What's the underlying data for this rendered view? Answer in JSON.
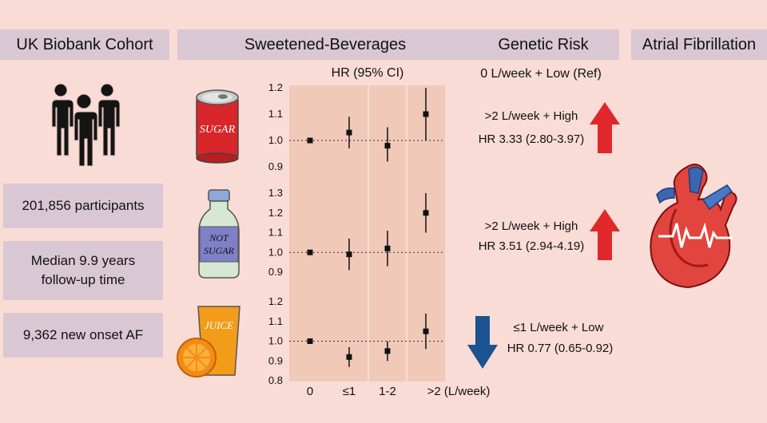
{
  "headers": {
    "cohort": "UK Biobank Cohort",
    "beverages": "Sweetened-Beverages",
    "genetic": "Genetic Risk",
    "af": "Atrial Fibrillation"
  },
  "stats": {
    "participants": "201,856 participants",
    "followup_line1": "Median  9.9 years",
    "followup_line2": "follow-up time",
    "onset": "9,362 new onset AF"
  },
  "beverage_labels": {
    "sugar": "SUGAR",
    "not_line1": "NOT",
    "not_line2": "SUGAR",
    "juice": "JUICE"
  },
  "forest": {
    "hr_label": "HR (95% CI)",
    "x_labels": [
      "0",
      "≤1",
      "1-2",
      ">2 (L/week)"
    ]
  },
  "genetic": {
    "ref": "0 L/week + Low (Ref)",
    "results": [
      {
        "group": ">2 L/week + High",
        "hr": "HR 3.33 (2.80-3.97)",
        "direction": "up",
        "color": "#e0282a"
      },
      {
        "group": ">2 L/week + High",
        "hr": "HR 3.51 (2.94-4.19)",
        "direction": "up",
        "color": "#e0282a"
      },
      {
        "group": "≤1 L/week + Low",
        "hr": "HR 0.77 (0.65-0.92)",
        "direction": "down",
        "color": "#1b5290"
      }
    ]
  },
  "chart_data": [
    {
      "type": "scatter",
      "title": "Sugar-sweetened beverages",
      "xlabel": "L/week",
      "ylabel": "HR (95% CI)",
      "categories": [
        "0",
        "≤1",
        "1-2",
        ">2"
      ],
      "ylim": [
        0.9,
        1.2
      ],
      "ticks": [
        "0.9",
        "1.0",
        "1.1",
        "1.2"
      ],
      "points": [
        {
          "hr": 1.0,
          "lo": 1.0,
          "hi": 1.0
        },
        {
          "hr": 1.03,
          "lo": 0.97,
          "hi": 1.09
        },
        {
          "hr": 0.98,
          "lo": 0.92,
          "hi": 1.05
        },
        {
          "hr": 1.1,
          "lo": 1.0,
          "hi": 1.2
        }
      ]
    },
    {
      "type": "scatter",
      "title": "Artificially sweetened beverages",
      "xlabel": "L/week",
      "ylabel": "HR (95% CI)",
      "categories": [
        "0",
        "≤1",
        "1-2",
        ">2"
      ],
      "ylim": [
        0.9,
        1.3
      ],
      "ticks": [
        "0.9",
        "1.0",
        "1.1",
        "1.2",
        "1.3"
      ],
      "points": [
        {
          "hr": 1.0,
          "lo": 1.0,
          "hi": 1.0
        },
        {
          "hr": 0.99,
          "lo": 0.91,
          "hi": 1.07
        },
        {
          "hr": 1.02,
          "lo": 0.93,
          "hi": 1.11
        },
        {
          "hr": 1.2,
          "lo": 1.1,
          "hi": 1.3
        }
      ]
    },
    {
      "type": "scatter",
      "title": "Natural juices",
      "xlabel": "L/week",
      "ylabel": "HR (95% CI)",
      "categories": [
        "0",
        "≤1",
        "1-2",
        ">2"
      ],
      "ylim": [
        0.8,
        1.2
      ],
      "ticks": [
        "0.8",
        "0.9",
        "1.0",
        "1.1",
        "1.2"
      ],
      "points": [
        {
          "hr": 1.0,
          "lo": 1.0,
          "hi": 1.0
        },
        {
          "hr": 0.92,
          "lo": 0.87,
          "hi": 0.97
        },
        {
          "hr": 0.95,
          "lo": 0.9,
          "hi": 1.0
        },
        {
          "hr": 1.05,
          "lo": 0.96,
          "hi": 1.14
        }
      ]
    }
  ]
}
